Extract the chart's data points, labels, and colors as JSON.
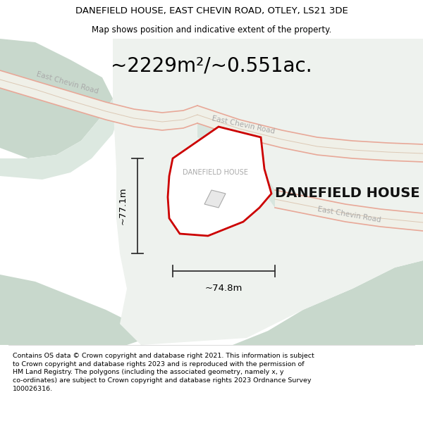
{
  "title_line1": "DANEFIELD HOUSE, EAST CHEVIN ROAD, OTLEY, LS21 3DE",
  "title_line2": "Map shows position and indicative extent of the property.",
  "area_text": "~2229m²/~0.551ac.",
  "label_width": "~74.8m",
  "label_height": "~77.1m",
  "property_label_small": "DANEFIELD HOUSE",
  "property_label_large": "DANEFIELD HOUSE",
  "copyright_lines": [
    "Contains OS data © Crown copyright and database right 2021. This information is subject to Crown copyright and database rights 2023 and is reproduced with the permission of",
    "HM Land Registry. The polygons (including the associated geometry, namely x, y",
    "co-ordinates) are subject to Crown copyright and database rights 2023 Ordnance Survey",
    "100026316."
  ],
  "bg_map_color": "#e8ede9",
  "road_color": "#f5f5f0",
  "road_edge_color": "#d4b8a0",
  "road_stripe_color": "#e8a898",
  "terrain_dark": "#c8d8cc",
  "terrain_mid": "#d8e5de",
  "plot_line_color": "#cc0000",
  "dim_line_color": "#333333",
  "road_label_color": "#aaaaaa",
  "figsize": [
    6.0,
    6.25
  ],
  "dpi": 100,
  "title_font_size": 9.5,
  "subtitle_font_size": 8.5,
  "area_font_size": 20,
  "label_large_font_size": 14,
  "label_small_font_size": 7,
  "copyright_font_size": 6.8,
  "road_label_font_size": 7.5
}
